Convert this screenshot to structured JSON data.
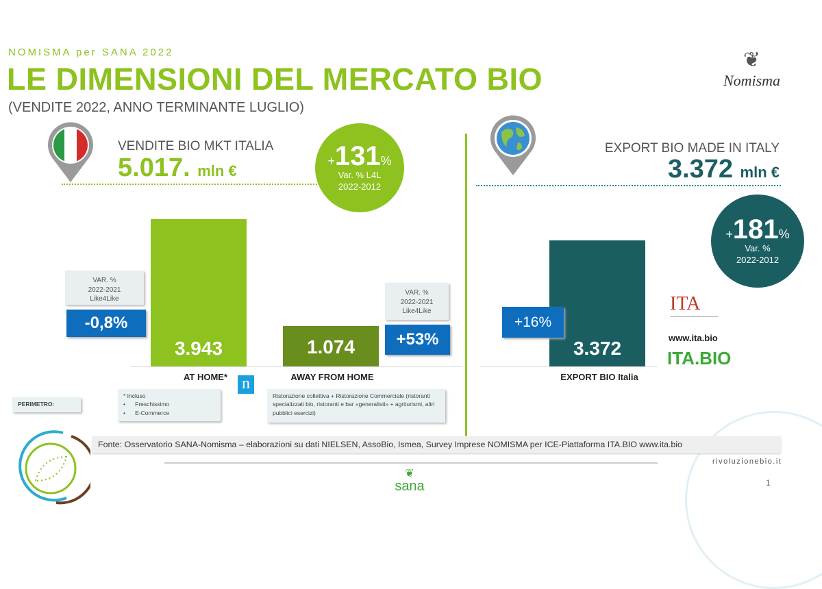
{
  "header": {
    "kicker": "NOMISMA per SANA 2022",
    "title": "LE DIMENSIONI DEL MERCATO BIO",
    "subtitle": "(VENDITE 2022, ANNO TERMINANTE LUGLIO)",
    "logo": "Nomisma"
  },
  "italy": {
    "label": "VENDITE BIO MKT ITALIA",
    "value": "5.017.",
    "unit": "mln €",
    "growth_sign": "+",
    "growth": "131",
    "growth_pct": "%",
    "growth_caption1": "Var. % L4L",
    "growth_caption2": "2022-2012"
  },
  "export": {
    "label": "EXPORT BIO MADE IN ITALY",
    "value": "3.372",
    "unit": "mln €",
    "growth_sign": "+",
    "growth": "181",
    "growth_pct": "%",
    "growth_caption1": "Var. %",
    "growth_caption2": "2022-2012"
  },
  "var_box": {
    "line1": "VAR. %",
    "line2": "2022-2021",
    "line3": "Like4Like"
  },
  "bars": {
    "at_home": {
      "value": "3.943",
      "var": "-0,8%",
      "label": "AT HOME*"
    },
    "away": {
      "value": "1.074",
      "var": "+53%",
      "label": "AWAY FROM HOME"
    },
    "export": {
      "value": "3.372",
      "var": "+16%",
      "label": "EXPORT BIO Italia"
    }
  },
  "notes": {
    "perimetro": "PERIMETRO:",
    "at_home_1": "* Incluso",
    "at_home_2": "Freschissimo",
    "at_home_3": "E-Commerce",
    "away": "Ristorazione collettiva  + Ristorazione Commerciale (ristoranti specializzati bio, ristoranti e bar «generalisti» + agriturismi, altri pubblici esercizi)"
  },
  "ita": {
    "logo": "ITA",
    "url": "www.ita.bio",
    "brand": "ITA.BIO"
  },
  "footer": {
    "source": "Fonte: Osservatorio SANA-Nomisma – elaborazioni su dati NIELSEN, AssoBio, Ismea, Survey Imprese NOMISMA per ICE-Piattaforma ITA.BIO www.ita.bio",
    "site": "rivoluzionebio.it",
    "sana": "sana",
    "page": "1"
  },
  "colors": {
    "green": "#8dc21f",
    "olive": "#6a8e1e",
    "teal": "#1b5e62",
    "blue": "#0e6ebd"
  },
  "chart_data": {
    "type": "bar",
    "unit": "mln €",
    "categories": [
      "AT HOME*",
      "AWAY FROM HOME",
      "EXPORT BIO Italia"
    ],
    "values": [
      3943,
      1074,
      3372
    ],
    "var_pct_2022_2021": [
      -0.8,
      53,
      16
    ],
    "totals": {
      "italy": 5017,
      "export": 3372
    },
    "growth_2022_2012": {
      "italy": 131,
      "export": 181
    }
  }
}
